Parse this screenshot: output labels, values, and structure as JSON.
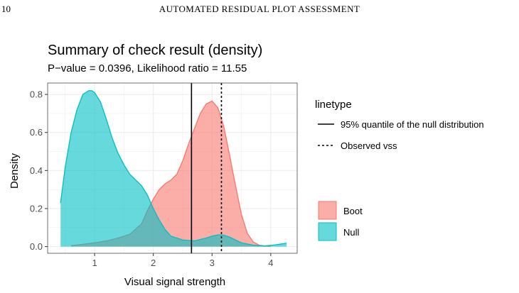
{
  "page": {
    "number": "10",
    "running_head": "AUTOMATED RESIDUAL PLOT ASSESSMENT"
  },
  "chart_data": {
    "type": "area",
    "title": "Summary of check result (density)",
    "subtitle": "P−value = 0.0396, Likelihood ratio = 11.55",
    "xlabel": "Visual signal strength",
    "ylabel": "Density",
    "xlim": [
      0.2,
      4.45
    ],
    "ylim": [
      -0.035,
      0.86
    ],
    "x_ticks": [
      1,
      2,
      3,
      4
    ],
    "x_tick_labels": [
      "1",
      "2",
      "3",
      "4"
    ],
    "y_ticks": [
      0.0,
      0.2,
      0.4,
      0.6,
      0.8
    ],
    "y_tick_labels": [
      "0.0",
      "0.2",
      "0.4",
      "0.6",
      "0.8"
    ],
    "grid": true,
    "series": [
      {
        "name": "Boot",
        "fill": "#F8766D",
        "x": [
          0.6,
          0.8,
          1.0,
          1.2,
          1.4,
          1.6,
          1.8,
          1.9,
          2.0,
          2.1,
          2.2,
          2.3,
          2.4,
          2.5,
          2.6,
          2.7,
          2.8,
          2.9,
          3.0,
          3.1,
          3.2,
          3.3,
          3.4,
          3.5,
          3.6,
          3.7,
          3.8,
          3.9,
          4.0
        ],
        "y": [
          0.005,
          0.012,
          0.02,
          0.03,
          0.045,
          0.065,
          0.12,
          0.19,
          0.25,
          0.3,
          0.33,
          0.35,
          0.38,
          0.45,
          0.54,
          0.62,
          0.7,
          0.75,
          0.765,
          0.73,
          0.63,
          0.48,
          0.32,
          0.17,
          0.07,
          0.025,
          0.008,
          0.003,
          0.001
        ]
      },
      {
        "name": "Null",
        "fill": "#00BFC4",
        "x": [
          0.42,
          0.5,
          0.6,
          0.7,
          0.8,
          0.9,
          0.95,
          1.0,
          1.1,
          1.2,
          1.3,
          1.4,
          1.5,
          1.6,
          1.7,
          1.8,
          1.9,
          2.0,
          2.1,
          2.2,
          2.3,
          2.5,
          2.7,
          2.9,
          3.0,
          3.1,
          3.2,
          3.3,
          3.4,
          3.5,
          3.7,
          3.9,
          4.1,
          4.27
        ],
        "y": [
          0.23,
          0.42,
          0.6,
          0.72,
          0.8,
          0.82,
          0.82,
          0.81,
          0.76,
          0.67,
          0.57,
          0.49,
          0.43,
          0.38,
          0.35,
          0.32,
          0.27,
          0.2,
          0.14,
          0.09,
          0.055,
          0.035,
          0.03,
          0.045,
          0.055,
          0.062,
          0.06,
          0.05,
          0.035,
          0.02,
          0.008,
          0.004,
          0.01,
          0.018
        ]
      }
    ],
    "vlines": [
      {
        "label": "95% quantile of the null distribution",
        "x": 2.65,
        "linetype": "solid"
      },
      {
        "label": "Observed vss",
        "x": 3.16,
        "linetype": "dashed"
      }
    ],
    "legends": {
      "linetype": {
        "title": "linetype",
        "items": [
          "95% quantile of the null distribution",
          "Observed vss"
        ]
      },
      "fill": {
        "items": [
          "Boot",
          "Null"
        ]
      }
    },
    "legend_position": "right"
  }
}
